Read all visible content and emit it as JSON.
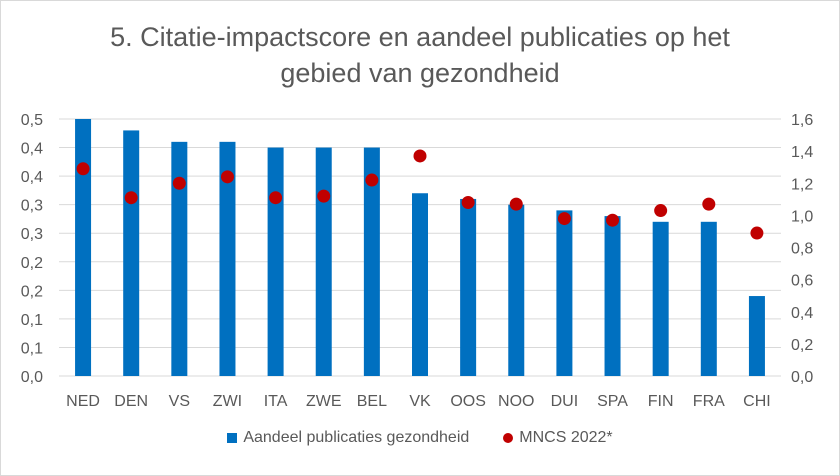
{
  "title_lines": [
    "5. Citatie-impactscore en aandeel publicaties op het",
    "gebied van gezondheid"
  ],
  "colors": {
    "bar": "#0070c0",
    "dot": "#c00000",
    "grid": "#d9d9d9",
    "text": "#595959"
  },
  "legend": {
    "bar_label": "Aandeel publicaties gezondheid",
    "dot_label": "MNCS 2022*"
  },
  "chart_data": {
    "type": "bar",
    "title": "5. Citatie-impactscore en aandeel publicaties op het gebied van gezondheid",
    "categories": [
      "NED",
      "DEN",
      "VS",
      "ZWI",
      "ITA",
      "ZWE",
      "BEL",
      "VK",
      "OOS",
      "NOO",
      "DUI",
      "SPA",
      "FIN",
      "FRA",
      "CHI"
    ],
    "series": [
      {
        "name": "Aandeel publicaties gezondheid",
        "type": "bar",
        "axis": "left",
        "values": [
          0.45,
          0.43,
          0.41,
          0.41,
          0.4,
          0.4,
          0.4,
          0.32,
          0.31,
          0.3,
          0.29,
          0.28,
          0.27,
          0.27,
          0.14
        ]
      },
      {
        "name": "MNCS 2022*",
        "type": "scatter",
        "axis": "right",
        "values": [
          1.29,
          1.11,
          1.2,
          1.24,
          1.11,
          1.12,
          1.22,
          1.37,
          1.08,
          1.07,
          0.98,
          0.97,
          1.03,
          1.07,
          0.89
        ]
      }
    ],
    "y_left": {
      "ylim": [
        0,
        0.45
      ],
      "ticks": [
        "0,0",
        "0,1",
        "0,1",
        "0,2",
        "0,2",
        "0,3",
        "0,3",
        "0,4",
        "0,4",
        "0,5"
      ]
    },
    "y_right": {
      "ylim": [
        0,
        1.6
      ],
      "ticks": [
        "0,0",
        "0,2",
        "0,4",
        "0,6",
        "0,8",
        "1,0",
        "1,2",
        "1,4",
        "1,6"
      ]
    },
    "grid": true,
    "legend_position": "bottom"
  }
}
